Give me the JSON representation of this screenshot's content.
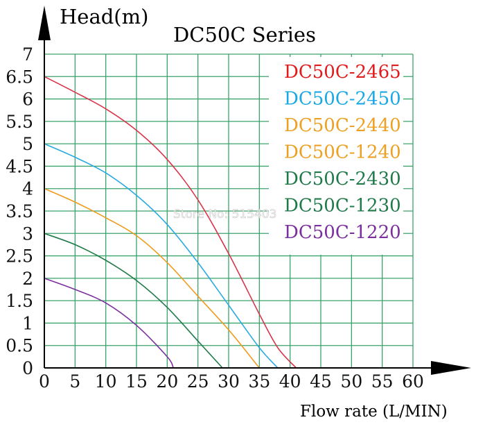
{
  "chart_data": {
    "type": "line",
    "title": "DC50C Series",
    "ylabel": "Head(m)",
    "xlabel": "Flow rate (L/MIN)",
    "xlim": [
      0,
      60
    ],
    "ylim": [
      0,
      7
    ],
    "x_ticks": [
      "0",
      "5",
      "10",
      "15",
      "20",
      "25",
      "30",
      "35",
      "40",
      "45",
      "50",
      "55",
      "60"
    ],
    "y_ticks": [
      "0",
      "0.5",
      "1",
      "1.5",
      "2",
      "2.5",
      "3",
      "3.5",
      "4",
      "4.5",
      "5",
      "5.5",
      "6",
      "6.5",
      "7"
    ],
    "grid": true,
    "legend_position": "top-right",
    "legend": [
      {
        "label": "DC50C-2465",
        "color": "#e01b1b"
      },
      {
        "label": "DC50C-2450",
        "color": "#1aa7e6"
      },
      {
        "label": "DC50C-2440",
        "color": "#eda021"
      },
      {
        "label": "DC50C-1240",
        "color": "#eda021"
      },
      {
        "label": "DC50C-2430",
        "color": "#1f7a4a"
      },
      {
        "label": "DC50C-1230",
        "color": "#1f7a4a"
      },
      {
        "label": "DC50C-1220",
        "color": "#7b2f9e"
      }
    ],
    "series": [
      {
        "color": "#d9334a",
        "points": [
          [
            0,
            6.5
          ],
          [
            5,
            6.15
          ],
          [
            10,
            5.78
          ],
          [
            15,
            5.3
          ],
          [
            20,
            4.65
          ],
          [
            25,
            3.75
          ],
          [
            30,
            2.55
          ],
          [
            35,
            1.2
          ],
          [
            38,
            0.45
          ],
          [
            41,
            0
          ]
        ]
      },
      {
        "color": "#29a9e0",
        "points": [
          [
            0,
            5.0
          ],
          [
            5,
            4.7
          ],
          [
            10,
            4.35
          ],
          [
            15,
            3.85
          ],
          [
            20,
            3.2
          ],
          [
            25,
            2.35
          ],
          [
            30,
            1.4
          ],
          [
            35,
            0.45
          ],
          [
            38,
            0
          ]
        ]
      },
      {
        "color": "#ee9b1c",
        "points": [
          [
            0,
            4.0
          ],
          [
            5,
            3.7
          ],
          [
            10,
            3.35
          ],
          [
            15,
            2.95
          ],
          [
            20,
            2.35
          ],
          [
            25,
            1.6
          ],
          [
            30,
            0.85
          ],
          [
            35,
            0
          ]
        ]
      },
      {
        "color": "#1f7a4a",
        "points": [
          [
            0,
            3.0
          ],
          [
            5,
            2.75
          ],
          [
            10,
            2.4
          ],
          [
            15,
            1.95
          ],
          [
            20,
            1.35
          ],
          [
            25,
            0.6
          ],
          [
            29,
            0
          ]
        ]
      },
      {
        "color": "#7b2f9e",
        "points": [
          [
            0,
            2.0
          ],
          [
            5,
            1.75
          ],
          [
            10,
            1.45
          ],
          [
            15,
            0.95
          ],
          [
            20,
            0.25
          ],
          [
            21,
            0
          ]
        ]
      }
    ]
  },
  "watermark": "Store No: 515403"
}
